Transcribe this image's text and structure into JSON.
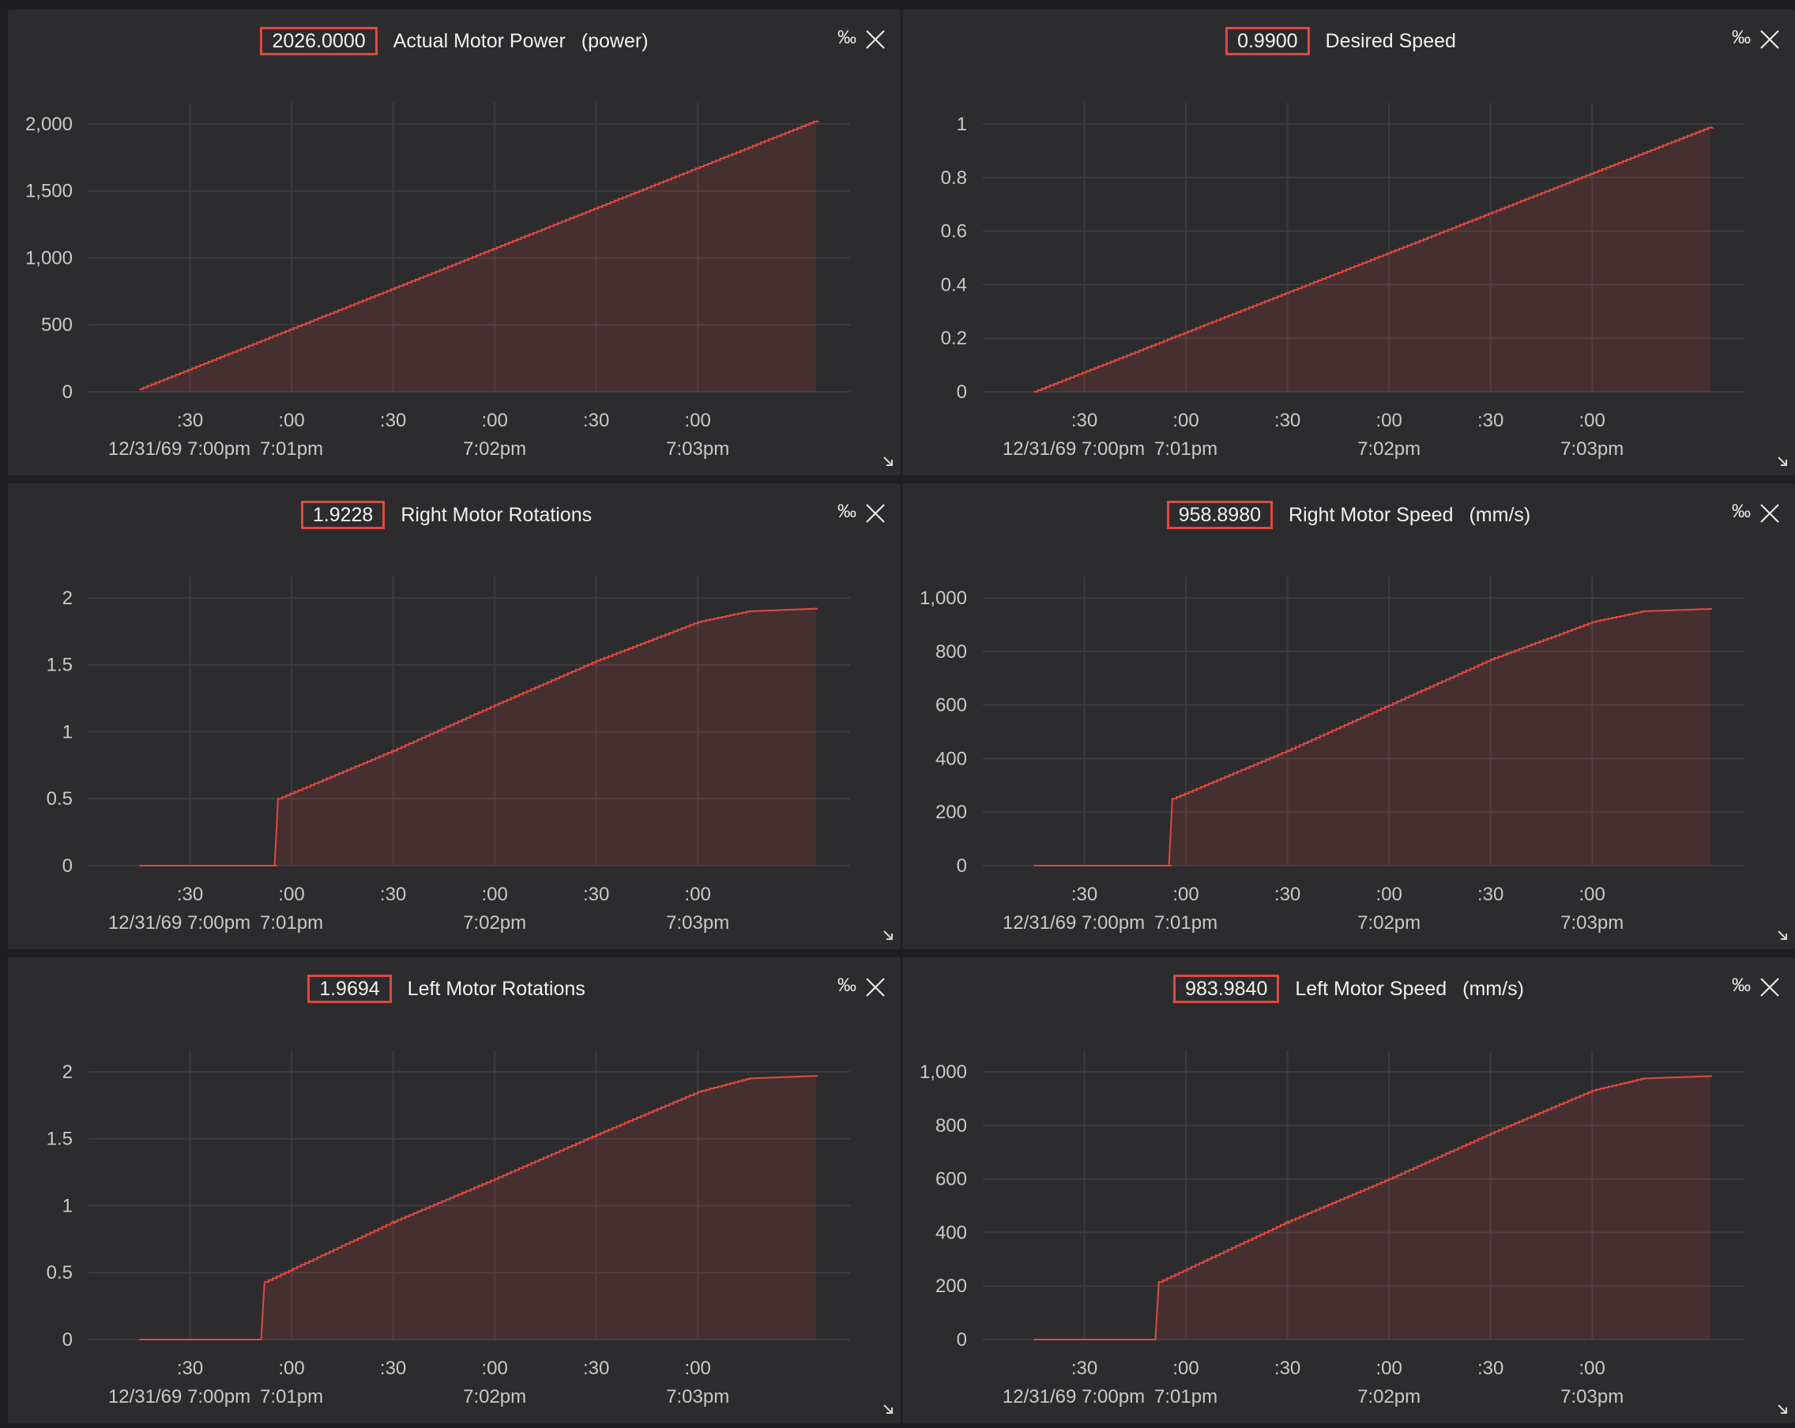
{
  "panels": [
    {
      "value": "2026.0000",
      "title": "Actual Motor Power",
      "unit": "(power)",
      "permille_label": "‰",
      "y_ticks": [
        "0",
        "500",
        "1,000",
        "1,500",
        "2,000"
      ],
      "x_ticks_top": [
        ":30",
        ":00",
        ":30",
        ":00",
        ":30",
        ":00"
      ],
      "x_ticks_bottom": [
        "12/31/69 7:00pm",
        "7:01pm",
        "7:02pm",
        "7:03pm"
      ]
    },
    {
      "value": "0.9900",
      "title": "Desired Speed",
      "unit": "",
      "permille_label": "‰",
      "y_ticks": [
        "0",
        "0.2",
        "0.4",
        "0.6",
        "0.8",
        "1"
      ],
      "x_ticks_top": [
        ":30",
        ":00",
        ":30",
        ":00",
        ":30",
        ":00"
      ],
      "x_ticks_bottom": [
        "12/31/69 7:00pm",
        "7:01pm",
        "7:02pm",
        "7:03pm"
      ]
    },
    {
      "value": "1.9228",
      "title": "Right Motor Rotations",
      "unit": "",
      "permille_label": "‰",
      "y_ticks": [
        "0",
        "0.5",
        "1",
        "1.5",
        "2"
      ],
      "x_ticks_top": [
        ":30",
        ":00",
        ":30",
        ":00",
        ":30",
        ":00"
      ],
      "x_ticks_bottom": [
        "12/31/69 7:00pm",
        "7:01pm",
        "7:02pm",
        "7:03pm"
      ]
    },
    {
      "value": "958.8980",
      "title": "Right Motor Speed",
      "unit": "(mm/s)",
      "permille_label": "‰",
      "y_ticks": [
        "0",
        "200",
        "400",
        "600",
        "800",
        "1,000"
      ],
      "x_ticks_top": [
        ":30",
        ":00",
        ":30",
        ":00",
        ":30",
        ":00"
      ],
      "x_ticks_bottom": [
        "12/31/69 7:00pm",
        "7:01pm",
        "7:02pm",
        "7:03pm"
      ]
    },
    {
      "value": "1.9694",
      "title": "Left Motor Rotations",
      "unit": "",
      "permille_label": "‰",
      "y_ticks": [
        "0",
        "0.5",
        "1",
        "1.5",
        "2"
      ],
      "x_ticks_top": [
        ":30",
        ":00",
        ":30",
        ":00",
        ":30",
        ":00"
      ],
      "x_ticks_bottom": [
        "12/31/69 7:00pm",
        "7:01pm",
        "7:02pm",
        "7:03pm"
      ]
    },
    {
      "value": "983.9840",
      "title": "Left Motor Speed",
      "unit": "(mm/s)",
      "permille_label": "‰",
      "y_ticks": [
        "0",
        "200",
        "400",
        "600",
        "800",
        "1,000"
      ],
      "x_ticks_top": [
        ":30",
        ":00",
        ":30",
        ":00",
        ":30",
        ":00"
      ],
      "x_ticks_bottom": [
        "12/31/69 7:00pm",
        "7:01pm",
        "7:02pm",
        "7:03pm"
      ]
    }
  ],
  "chart_data": [
    {
      "type": "area",
      "title": "Actual Motor Power",
      "ylabel": "(power)",
      "color": "#e0493f",
      "ylim": [
        0,
        2100
      ],
      "x": [
        "7:00:15pm",
        "7:03:35pm"
      ],
      "series": [
        {
          "name": "Actual Motor Power",
          "values": [
            20,
            2026
          ]
        }
      ]
    },
    {
      "type": "area",
      "title": "Desired Speed",
      "color": "#e0493f",
      "ylim": [
        0,
        1.05
      ],
      "x": [
        "7:00:15pm",
        "7:03:35pm"
      ],
      "series": [
        {
          "name": "Desired Speed",
          "values": [
            0,
            0.99
          ]
        }
      ]
    },
    {
      "type": "area",
      "title": "Right Motor Rotations",
      "color": "#e0493f",
      "ylim": [
        0,
        2.1
      ],
      "x": [
        "7:00:15pm",
        "7:00:55pm",
        "7:00:56pm",
        "7:01:30pm",
        "7:02:00pm",
        "7:02:30pm",
        "7:03:00pm",
        "7:03:15pm",
        "7:03:35pm"
      ],
      "series": [
        {
          "name": "Right Motor Rotations",
          "values": [
            0,
            0,
            0.5,
            0.86,
            1.2,
            1.53,
            1.82,
            1.9,
            1.92
          ]
        }
      ]
    },
    {
      "type": "area",
      "title": "Right Motor Speed",
      "ylabel": "(mm/s)",
      "color": "#e0493f",
      "ylim": [
        0,
        1050
      ],
      "x": [
        "7:00:15pm",
        "7:00:55pm",
        "7:00:56pm",
        "7:01:30pm",
        "7:02:00pm",
        "7:02:30pm",
        "7:03:00pm",
        "7:03:15pm",
        "7:03:35pm"
      ],
      "series": [
        {
          "name": "Right Motor Speed",
          "values": [
            0,
            0,
            250,
            430,
            600,
            770,
            910,
            950,
            959
          ]
        }
      ]
    },
    {
      "type": "area",
      "title": "Left Motor Rotations",
      "color": "#e0493f",
      "ylim": [
        0,
        2.1
      ],
      "x": [
        "7:00:15pm",
        "7:00:51pm",
        "7:00:52pm",
        "7:01:30pm",
        "7:02:00pm",
        "7:02:30pm",
        "7:03:00pm",
        "7:03:15pm",
        "7:03:35pm"
      ],
      "series": [
        {
          "name": "Left Motor Rotations",
          "values": [
            0,
            0,
            0.43,
            0.88,
            1.2,
            1.53,
            1.85,
            1.95,
            1.97
          ]
        }
      ]
    },
    {
      "type": "area",
      "title": "Left Motor Speed",
      "ylabel": "(mm/s)",
      "color": "#e0493f",
      "ylim": [
        0,
        1050
      ],
      "x": [
        "7:00:15pm",
        "7:00:51pm",
        "7:00:52pm",
        "7:01:30pm",
        "7:02:00pm",
        "7:02:30pm",
        "7:03:00pm",
        "7:03:15pm",
        "7:03:35pm"
      ],
      "series": [
        {
          "name": "Left Motor Speed",
          "values": [
            0,
            0,
            215,
            440,
            600,
            770,
            930,
            975,
            984
          ]
        }
      ]
    }
  ]
}
